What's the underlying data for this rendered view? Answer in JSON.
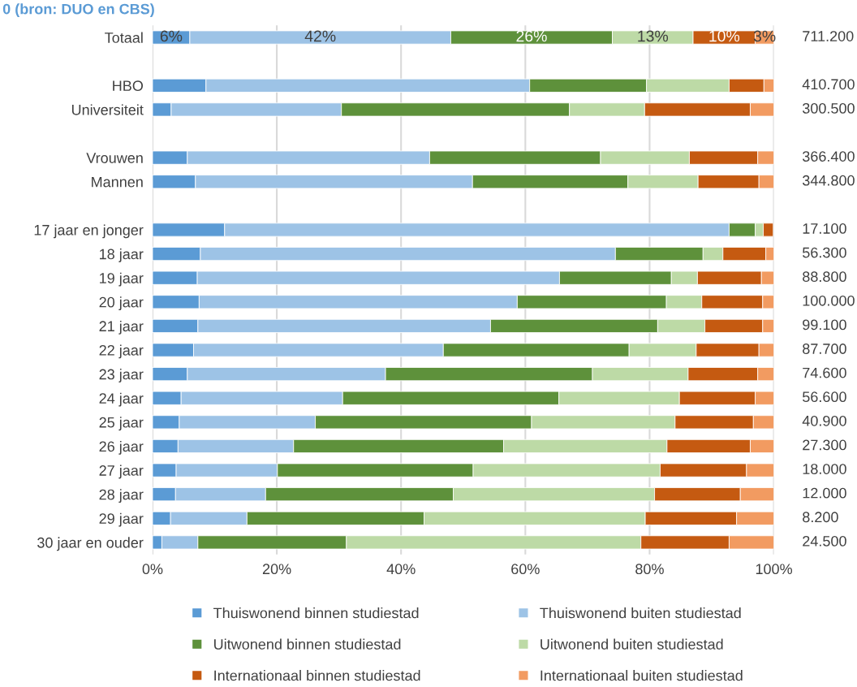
{
  "chart_data": {
    "type": "bar",
    "orientation": "horizontal",
    "stacked": true,
    "title": "0 (bron: DUO en CBS)",
    "categories": [
      "Totaal",
      null,
      "HBO",
      "Universiteit",
      null,
      "Vrouwen",
      "Mannen",
      null,
      "17 jaar en jonger",
      "18 jaar",
      "19 jaar",
      "20 jaar",
      "21 jaar",
      "22 jaar",
      "23 jaar",
      "24 jaar",
      "25 jaar",
      "26 jaar",
      "27 jaar",
      "28 jaar",
      "29 jaar",
      "30 jaar en ouder"
    ],
    "series": [
      {
        "name": "Thuiswonend binnen studiestad",
        "color": "#5b9bd5",
        "values": [
          6,
          null,
          8.6,
          3.0,
          null,
          5.6,
          6.9,
          null,
          11.6,
          7.7,
          7.2,
          7.5,
          7.3,
          6.6,
          5.6,
          4.6,
          4.3,
          4.1,
          3.8,
          3.7,
          2.9,
          1.5
        ],
        "value_labels": [
          "6%",
          null,
          null,
          null,
          null,
          null,
          null,
          null,
          null,
          null,
          null,
          null,
          null,
          null,
          null,
          null,
          null,
          null,
          null,
          null,
          null,
          null
        ]
      },
      {
        "name": "Thuiswonend buiten studiestad",
        "color": "#9dc3e6",
        "values": [
          42,
          null,
          52.1,
          27.4,
          null,
          39.0,
          44.6,
          null,
          81.2,
          66.8,
          58.3,
          51.2,
          47.1,
          40.2,
          31.9,
          26.0,
          21.9,
          18.6,
          16.3,
          14.5,
          12.3,
          5.8
        ],
        "value_labels": [
          "42%",
          null,
          null,
          null,
          null,
          null,
          null,
          null,
          null,
          null,
          null,
          null,
          null,
          null,
          null,
          null,
          null,
          null,
          null,
          null,
          null,
          null
        ]
      },
      {
        "name": "Uitwonend binnen studiestad",
        "color": "#5e913b",
        "values": [
          26,
          null,
          18.8,
          36.7,
          null,
          27.5,
          25.0,
          null,
          4.2,
          14.1,
          18.0,
          24.0,
          26.9,
          29.9,
          33.3,
          34.8,
          34.8,
          33.8,
          31.5,
          30.2,
          28.5,
          23.9
        ],
        "value_labels": [
          "26%",
          null,
          null,
          null,
          null,
          null,
          null,
          null,
          null,
          null,
          null,
          null,
          null,
          null,
          null,
          null,
          null,
          null,
          null,
          null,
          null,
          null
        ]
      },
      {
        "name": "Uitwonend buiten studiestad",
        "color": "#bddaa6",
        "values": [
          13,
          null,
          13.3,
          12.1,
          null,
          14.3,
          11.3,
          null,
          1.3,
          3.2,
          4.2,
          5.7,
          7.6,
          10.8,
          15.4,
          19.4,
          23.1,
          26.3,
          30.1,
          32.4,
          35.6,
          47.4
        ],
        "value_labels": [
          "13%",
          null,
          null,
          null,
          null,
          null,
          null,
          null,
          null,
          null,
          null,
          null,
          null,
          null,
          null,
          null,
          null,
          null,
          null,
          null,
          null,
          null
        ]
      },
      {
        "name": "Internationaal binnen studiestad",
        "color": "#c55a11",
        "values": [
          10,
          null,
          5.6,
          17.0,
          null,
          11.0,
          9.8,
          null,
          1.6,
          6.9,
          10.3,
          9.8,
          9.3,
          10.1,
          11.2,
          12.2,
          12.6,
          13.4,
          13.9,
          13.8,
          14.7,
          14.2
        ],
        "value_labels": [
          "10%",
          null,
          null,
          null,
          null,
          null,
          null,
          null,
          null,
          null,
          null,
          null,
          null,
          null,
          null,
          null,
          null,
          null,
          null,
          null,
          null,
          null
        ]
      },
      {
        "name": "Internationaal buiten studiestad",
        "color": "#f29b61",
        "values": [
          3,
          null,
          1.6,
          3.8,
          null,
          2.6,
          2.4,
          null,
          null,
          1.3,
          2.0,
          1.8,
          1.8,
          2.4,
          2.6,
          3.0,
          3.3,
          3.8,
          4.4,
          5.4,
          6.0,
          7.2
        ],
        "value_labels": [
          "3%",
          null,
          null,
          null,
          null,
          null,
          null,
          null,
          null,
          null,
          null,
          null,
          null,
          null,
          null,
          null,
          null,
          null,
          null,
          null,
          null,
          null
        ]
      }
    ],
    "annotations": [
      "711.200",
      "410.700",
      "300.500",
      "366.400",
      "344.800",
      "17.100",
      "56.300",
      "88.800",
      "100.000",
      "99.100",
      "87.700",
      "74.600",
      "56.600",
      "40.900",
      "27.300",
      "18.000",
      "12.000",
      "8.200",
      "24.500"
    ],
    "xlim": [
      0,
      100
    ],
    "xticks": [
      {
        "value": 0,
        "label": "0%"
      },
      {
        "value": 20,
        "label": "20%"
      },
      {
        "value": 40,
        "label": "40%"
      },
      {
        "value": 60,
        "label": "60%"
      },
      {
        "value": 80,
        "label": "80%"
      },
      {
        "value": 100,
        "label": "100%"
      }
    ],
    "grid": "x",
    "legend": "bottom"
  }
}
